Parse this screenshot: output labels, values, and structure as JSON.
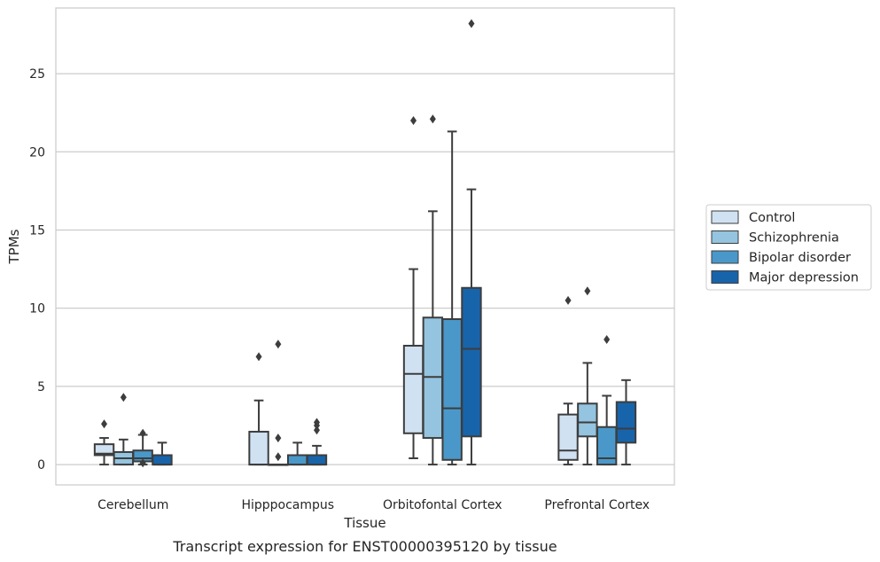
{
  "chart_data": {
    "type": "box",
    "title": "",
    "caption": "Transcript expression for ENST00000395120 by tissue",
    "xlabel": "Tissue",
    "ylabel": "TPMs",
    "categories": [
      "Cerebellum",
      "Hipppocampus",
      "Orbitofontal Cortex",
      "Prefrontal Cortex"
    ],
    "ylim": [
      -1.3,
      29.2
    ],
    "yticks": [
      0,
      5,
      10,
      15,
      20,
      25
    ],
    "grid": "horizontal",
    "legend_position": "right",
    "series": [
      {
        "name": "Control",
        "color": "#d0e1f2",
        "boxes": [
          {
            "min": 0.0,
            "q1": 0.6,
            "median": 0.7,
            "q3": 1.3,
            "max": 1.7,
            "outliers": [
              2.6
            ]
          },
          {
            "min": 0.0,
            "q1": 0.0,
            "median": 0.0,
            "q3": 2.1,
            "max": 4.1,
            "outliers": [
              6.9
            ]
          },
          {
            "min": 0.4,
            "q1": 2.0,
            "median": 5.8,
            "q3": 7.6,
            "max": 12.5,
            "outliers": [
              22.0
            ]
          },
          {
            "min": 0.0,
            "q1": 0.3,
            "median": 0.9,
            "q3": 3.2,
            "max": 3.9,
            "outliers": [
              10.5
            ]
          }
        ]
      },
      {
        "name": "Schizophrenia",
        "color": "#94c4df",
        "boxes": [
          {
            "min": 0.0,
            "q1": 0.0,
            "median": 0.4,
            "q3": 0.8,
            "max": 1.6,
            "outliers": [
              4.3
            ]
          },
          {
            "min": 0.0,
            "q1": 0.0,
            "median": 0.0,
            "q3": 0.0,
            "max": 0.0,
            "outliers": [
              1.7,
              0.5,
              7.7
            ]
          },
          {
            "min": 0.0,
            "q1": 1.7,
            "median": 5.6,
            "q3": 9.4,
            "max": 16.2,
            "outliers": [
              22.1
            ]
          },
          {
            "min": 0.0,
            "q1": 1.8,
            "median": 2.7,
            "q3": 3.9,
            "max": 6.5,
            "outliers": [
              11.1
            ]
          }
        ]
      },
      {
        "name": "Bipolar disorder",
        "color": "#4a98c9",
        "boxes": [
          {
            "min": 0.0,
            "q1": 0.2,
            "median": 0.4,
            "q3": 0.9,
            "max": 1.9,
            "outliers": [
              2.0,
              0.1
            ]
          },
          {
            "min": 0.0,
            "q1": 0.0,
            "median": 0.0,
            "q3": 0.6,
            "max": 1.4,
            "outliers": []
          },
          {
            "min": 0.0,
            "q1": 0.3,
            "median": 3.6,
            "q3": 9.3,
            "max": 21.3,
            "outliers": []
          },
          {
            "min": 0.0,
            "q1": 0.0,
            "median": 0.4,
            "q3": 2.4,
            "max": 4.4,
            "outliers": [
              8.0
            ]
          }
        ]
      },
      {
        "name": "Major depression",
        "color": "#1764ab",
        "boxes": [
          {
            "min": 0.0,
            "q1": 0.0,
            "median": 0.0,
            "q3": 0.6,
            "max": 1.4,
            "outliers": []
          },
          {
            "min": 0.0,
            "q1": 0.0,
            "median": 0.0,
            "q3": 0.6,
            "max": 1.2,
            "outliers": [
              2.2,
              2.5,
              2.7
            ]
          },
          {
            "min": 0.0,
            "q1": 1.8,
            "median": 7.4,
            "q3": 11.3,
            "max": 17.6,
            "outliers": [
              28.2
            ]
          },
          {
            "min": 0.0,
            "q1": 1.4,
            "median": 2.3,
            "q3": 4.0,
            "max": 5.4,
            "outliers": []
          }
        ]
      }
    ]
  }
}
